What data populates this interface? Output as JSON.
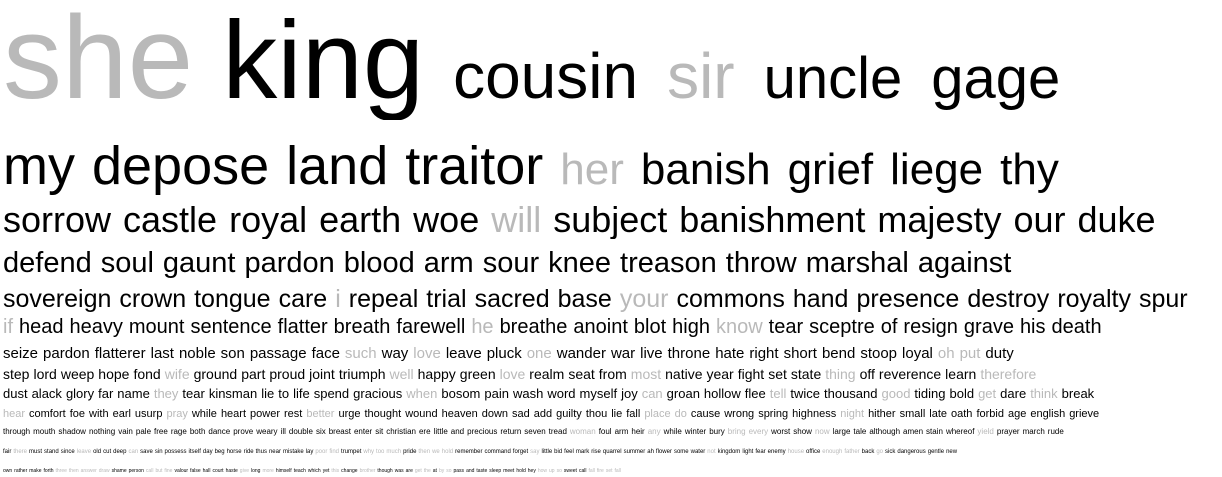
{
  "lines": [
    [
      [
        "she",
        1
      ],
      [
        "king",
        0
      ],
      [
        "cousin",
        0
      ],
      [
        "sir",
        1
      ],
      [
        "uncle",
        0
      ],
      [
        "gage",
        0
      ]
    ],
    [
      [
        "my",
        0
      ],
      [
        "depose",
        0
      ],
      [
        "land",
        0
      ],
      [
        "traitor",
        0
      ],
      [
        "her",
        1
      ],
      [
        "banish",
        0
      ],
      [
        "grief",
        0
      ],
      [
        "liege",
        0
      ],
      [
        "thy",
        0
      ]
    ],
    [
      [
        "sorrow",
        0
      ],
      [
        "castle",
        0
      ],
      [
        "royal",
        0
      ],
      [
        "earth",
        0
      ],
      [
        "woe",
        0
      ],
      [
        "will",
        1
      ],
      [
        "subject",
        0
      ],
      [
        "banishment",
        0
      ],
      [
        "majesty",
        0
      ],
      [
        "our",
        0
      ],
      [
        "duke",
        0
      ]
    ],
    [
      [
        "defend",
        0
      ],
      [
        "soul",
        0
      ],
      [
        "gaunt",
        0
      ],
      [
        "pardon",
        0
      ],
      [
        "blood",
        0
      ],
      [
        "arm",
        0
      ],
      [
        "sour",
        0
      ],
      [
        "knee",
        0
      ],
      [
        "treason",
        0
      ],
      [
        "throw",
        0
      ],
      [
        "marshal",
        0
      ],
      [
        "against",
        0
      ]
    ],
    [
      [
        "sovereign",
        0
      ],
      [
        "crown",
        0
      ],
      [
        "tongue",
        0
      ],
      [
        "care",
        0
      ],
      [
        "i",
        1
      ],
      [
        "repeal",
        0
      ],
      [
        "trial",
        0
      ],
      [
        "sacred",
        0
      ],
      [
        "base",
        0
      ],
      [
        "your",
        1
      ],
      [
        "commons",
        0
      ],
      [
        "hand",
        0
      ],
      [
        "presence",
        0
      ],
      [
        "destroy",
        0
      ],
      [
        "royalty",
        0
      ],
      [
        "spur",
        0
      ]
    ],
    [
      [
        "if",
        1
      ],
      [
        "head",
        0
      ],
      [
        "heavy",
        0
      ],
      [
        "mount",
        0
      ],
      [
        "sentence",
        0
      ],
      [
        "flatter",
        0
      ],
      [
        "breath",
        0
      ],
      [
        "farewell",
        0
      ],
      [
        "he",
        1
      ],
      [
        "breathe",
        0
      ],
      [
        "anoint",
        0
      ],
      [
        "blot",
        0
      ],
      [
        "high",
        0
      ],
      [
        "know",
        1
      ],
      [
        "tear",
        0
      ],
      [
        "sceptre",
        0
      ],
      [
        "of",
        0
      ],
      [
        "resign",
        0
      ],
      [
        "grave",
        0
      ],
      [
        "his",
        0
      ],
      [
        "death",
        0
      ]
    ],
    [
      [
        "seize",
        0
      ],
      [
        "pardon",
        0
      ],
      [
        "flatterer",
        0
      ],
      [
        "last",
        0
      ],
      [
        "noble",
        0
      ],
      [
        "son",
        0
      ],
      [
        "passage",
        0
      ],
      [
        "face",
        0
      ],
      [
        "such",
        1
      ],
      [
        "way",
        0
      ],
      [
        "love",
        1
      ],
      [
        "leave",
        0
      ],
      [
        "pluck",
        0
      ],
      [
        "one",
        1
      ],
      [
        "wander",
        0
      ],
      [
        "war",
        0
      ],
      [
        "live",
        0
      ],
      [
        "throne",
        0
      ],
      [
        "hate",
        0
      ],
      [
        "right",
        0
      ],
      [
        "short",
        0
      ],
      [
        "bend",
        0
      ],
      [
        "stoop",
        0
      ],
      [
        "loyal",
        0
      ],
      [
        "oh",
        1
      ],
      [
        "put",
        1
      ],
      [
        "duty",
        0
      ]
    ],
    [
      [
        "step",
        0
      ],
      [
        "lord",
        0
      ],
      [
        "weep",
        0
      ],
      [
        "hope",
        0
      ],
      [
        "fond",
        0
      ],
      [
        "wife",
        1
      ],
      [
        "ground",
        0
      ],
      [
        "part",
        0
      ],
      [
        "proud",
        0
      ],
      [
        "joint",
        0
      ],
      [
        "triumph",
        0
      ],
      [
        "well",
        1
      ],
      [
        "happy",
        0
      ],
      [
        "green",
        0
      ],
      [
        "love",
        1
      ],
      [
        "realm",
        0
      ],
      [
        "seat",
        0
      ],
      [
        "from",
        0
      ],
      [
        "most",
        1
      ],
      [
        "native",
        0
      ],
      [
        "year",
        0
      ],
      [
        "fight",
        0
      ],
      [
        "set",
        0
      ],
      [
        "state",
        0
      ],
      [
        "thing",
        1
      ],
      [
        "off",
        0
      ],
      [
        "reverence",
        0
      ],
      [
        "learn",
        0
      ],
      [
        "therefore",
        1
      ]
    ],
    [
      [
        "dust",
        0
      ],
      [
        "alack",
        0
      ],
      [
        "glory",
        0
      ],
      [
        "far",
        0
      ],
      [
        "name",
        0
      ],
      [
        "they",
        1
      ],
      [
        "tear",
        0
      ],
      [
        "kinsman",
        0
      ],
      [
        "lie",
        0
      ],
      [
        "to",
        0
      ],
      [
        "life",
        0
      ],
      [
        "spend",
        0
      ],
      [
        "gracious",
        0
      ],
      [
        "when",
        1
      ],
      [
        "bosom",
        0
      ],
      [
        "pain",
        0
      ],
      [
        "wash",
        0
      ],
      [
        "word",
        0
      ],
      [
        "myself",
        0
      ],
      [
        "joy",
        0
      ],
      [
        "can",
        1
      ],
      [
        "groan",
        0
      ],
      [
        "hollow",
        0
      ],
      [
        "flee",
        0
      ],
      [
        "tell",
        1
      ],
      [
        "twice",
        0
      ],
      [
        "thousand",
        0
      ],
      [
        "good",
        1
      ],
      [
        "tiding",
        0
      ],
      [
        "bold",
        0
      ],
      [
        "get",
        1
      ],
      [
        "dare",
        0
      ],
      [
        "think",
        1
      ],
      [
        "break",
        0
      ]
    ],
    [
      [
        "hear",
        1
      ],
      [
        "comfort",
        0
      ],
      [
        "foe",
        0
      ],
      [
        "with",
        0
      ],
      [
        "earl",
        0
      ],
      [
        "usurp",
        0
      ],
      [
        "pray",
        1
      ],
      [
        "while",
        0
      ],
      [
        "heart",
        0
      ],
      [
        "power",
        0
      ],
      [
        "rest",
        0
      ],
      [
        "better",
        1
      ],
      [
        "urge",
        0
      ],
      [
        "thought",
        0
      ],
      [
        "wound",
        0
      ],
      [
        "heaven",
        0
      ],
      [
        "down",
        0
      ],
      [
        "sad",
        0
      ],
      [
        "add",
        0
      ],
      [
        "guilty",
        0
      ],
      [
        "thou",
        0
      ],
      [
        "lie",
        0
      ],
      [
        "fall",
        0
      ],
      [
        "place",
        1
      ],
      [
        "do",
        1
      ],
      [
        "cause",
        0
      ],
      [
        "wrong",
        0
      ],
      [
        "spring",
        0
      ],
      [
        "highness",
        0
      ],
      [
        "night",
        1
      ],
      [
        "hither",
        0
      ],
      [
        "small",
        0
      ],
      [
        "late",
        0
      ],
      [
        "oath",
        0
      ],
      [
        "forbid",
        0
      ],
      [
        "age",
        0
      ],
      [
        "english",
        0
      ],
      [
        "grieve",
        0
      ]
    ],
    [
      [
        "through",
        0
      ],
      [
        "mouth",
        0
      ],
      [
        "shadow",
        0
      ],
      [
        "nothing",
        0
      ],
      [
        "vain",
        0
      ],
      [
        "pale",
        0
      ],
      [
        "free",
        0
      ],
      [
        "rage",
        0
      ],
      [
        "both",
        0
      ],
      [
        "dance",
        0
      ],
      [
        "prove",
        0
      ],
      [
        "weary",
        0
      ],
      [
        "ill",
        0
      ],
      [
        "double",
        0
      ],
      [
        "six",
        0
      ],
      [
        "breast",
        0
      ],
      [
        "enter",
        0
      ],
      [
        "sit",
        0
      ],
      [
        "christian",
        0
      ],
      [
        "ere",
        0
      ],
      [
        "little",
        0
      ],
      [
        "and",
        0
      ],
      [
        "precious",
        0
      ],
      [
        "return",
        0
      ],
      [
        "seven",
        0
      ],
      [
        "tread",
        0
      ],
      [
        "woman",
        1
      ],
      [
        "foul",
        0
      ],
      [
        "arm",
        0
      ],
      [
        "heir",
        0
      ],
      [
        "any",
        1
      ],
      [
        "while",
        0
      ],
      [
        "winter",
        0
      ],
      [
        "bury",
        0
      ],
      [
        "bring",
        1
      ],
      [
        "every",
        1
      ],
      [
        "worst",
        0
      ],
      [
        "show",
        0
      ],
      [
        "now",
        1
      ],
      [
        "large",
        0
      ],
      [
        "tale",
        0
      ],
      [
        "although",
        0
      ],
      [
        "amen",
        0
      ],
      [
        "stain",
        0
      ],
      [
        "whereof",
        0
      ],
      [
        "yield",
        1
      ],
      [
        "prayer",
        0
      ],
      [
        "march",
        0
      ],
      [
        "rude",
        0
      ]
    ],
    [
      [
        "fair",
        0
      ],
      [
        "there",
        1
      ],
      [
        "must",
        0
      ],
      [
        "stand",
        0
      ],
      [
        "since",
        0
      ],
      [
        "leave",
        1
      ],
      [
        "old",
        0
      ],
      [
        "cut",
        0
      ],
      [
        "deep",
        0
      ],
      [
        "can",
        1
      ],
      [
        "save",
        0
      ],
      [
        "sin",
        0
      ],
      [
        "possess",
        0
      ],
      [
        "itself",
        0
      ],
      [
        "day",
        0
      ],
      [
        "beg",
        0
      ],
      [
        "horse",
        0
      ],
      [
        "ride",
        0
      ],
      [
        "thus",
        0
      ],
      [
        "near",
        0
      ],
      [
        "mistake",
        0
      ],
      [
        "lay",
        0
      ],
      [
        "poor",
        1
      ],
      [
        "find",
        1
      ],
      [
        "trumpet",
        0
      ],
      [
        "why",
        1
      ],
      [
        "too",
        1
      ],
      [
        "much",
        1
      ],
      [
        "pride",
        0
      ],
      [
        "then",
        1
      ],
      [
        "we",
        1
      ],
      [
        "hold",
        1
      ],
      [
        "remember",
        0
      ],
      [
        "command",
        0
      ],
      [
        "forget",
        0
      ],
      [
        "say",
        1
      ],
      [
        "little",
        0
      ],
      [
        "bid",
        0
      ],
      [
        "feel",
        0
      ],
      [
        "mark",
        0
      ],
      [
        "rise",
        0
      ],
      [
        "quarrel",
        0
      ],
      [
        "summer",
        0
      ],
      [
        "ah",
        0
      ],
      [
        "flower",
        0
      ],
      [
        "some",
        0
      ],
      [
        "water",
        0
      ],
      [
        "not",
        1
      ],
      [
        "kingdom",
        0
      ],
      [
        "light",
        0
      ],
      [
        "fear",
        0
      ],
      [
        "enemy",
        0
      ],
      [
        "house",
        1
      ],
      [
        "office",
        0
      ],
      [
        "enough",
        1
      ],
      [
        "father",
        1
      ],
      [
        "back",
        0
      ],
      [
        "go",
        1
      ],
      [
        "sick",
        0
      ],
      [
        "dangerous",
        0
      ],
      [
        "gentle",
        0
      ],
      [
        "new",
        0
      ]
    ],
    [
      [
        "own",
        0
      ],
      [
        "rather",
        0
      ],
      [
        "make",
        0
      ],
      [
        "forth",
        0
      ],
      [
        "three",
        1
      ],
      [
        "then",
        1
      ],
      [
        "answer",
        1
      ],
      [
        "draw",
        1
      ],
      [
        "shame",
        0
      ],
      [
        "person",
        0
      ],
      [
        "call",
        1
      ],
      [
        "but",
        1
      ],
      [
        "fine",
        1
      ],
      [
        "valour",
        0
      ],
      [
        "false",
        0
      ],
      [
        "hall",
        0
      ],
      [
        "court",
        0
      ],
      [
        "haste",
        0
      ],
      [
        "give",
        1
      ],
      [
        "long",
        0
      ],
      [
        "more",
        1
      ],
      [
        "himself",
        0
      ],
      [
        "teach",
        0
      ],
      [
        "which",
        0
      ],
      [
        "yet",
        0
      ],
      [
        "this",
        1
      ],
      [
        "change",
        0
      ],
      [
        "brother",
        1
      ],
      [
        "though",
        0
      ],
      [
        "was",
        0
      ],
      [
        "are",
        0
      ],
      [
        "get",
        1
      ],
      [
        "the",
        1
      ],
      [
        "at",
        0
      ],
      [
        "by",
        1
      ],
      [
        "so",
        1
      ],
      [
        "pass",
        0
      ],
      [
        "and",
        0
      ],
      [
        "taste",
        0
      ],
      [
        "sleep",
        0
      ],
      [
        "meet",
        0
      ],
      [
        "hold",
        0
      ],
      [
        "hey",
        0
      ],
      [
        "how",
        1
      ],
      [
        "up",
        1
      ],
      [
        "so",
        1
      ],
      [
        "sweet",
        0
      ],
      [
        "call",
        0
      ],
      [
        "fall",
        1
      ],
      [
        "fire",
        1
      ],
      [
        "set",
        1
      ],
      [
        "fall",
        1
      ]
    ]
  ]
}
